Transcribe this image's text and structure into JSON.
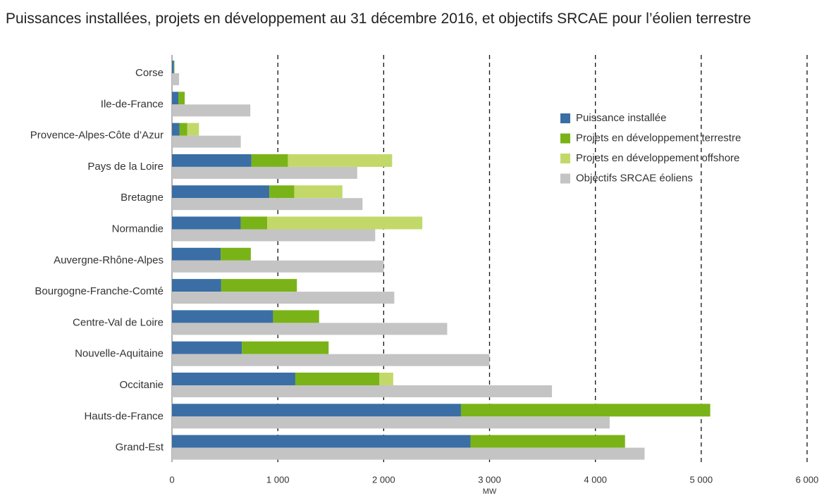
{
  "chart_data": {
    "type": "bar",
    "orientation": "horizontal",
    "title": "Puissances installées, projets en développement au 31 décembre 2016, et objectifs SRCAE pour l’éolien terrestre",
    "x_label": "MW",
    "categories": [
      "Corse",
      "Ile-de-France",
      "Provence-Alpes-Côte d’Azur",
      "Pays de la Loire",
      "Bretagne",
      "Normandie",
      "Auvergne-Rhône-Alpes",
      "Bourgogne-Franche-Comté",
      "Centre-Val de Loire",
      "Nouvelle-Aquitaine",
      "Occitanie",
      "Hauts-de-France",
      "Grand-Est"
    ],
    "series": [
      {
        "name": "Puissance installée",
        "color": "#3a6ea5",
        "values": [
          18,
          60,
          70,
          750,
          920,
          650,
          460,
          465,
          955,
          660,
          1165,
          2730,
          2820
        ]
      },
      {
        "name": "Projets en développement terrestre",
        "color": "#7ab317",
        "values": [
          5,
          60,
          75,
          345,
          235,
          250,
          285,
          715,
          435,
          820,
          795,
          2355,
          1460
        ]
      },
      {
        "name": "Projets en développement offshore",
        "color": "#c2d96a",
        "values": [
          0,
          0,
          110,
          985,
          455,
          1465,
          0,
          0,
          0,
          0,
          130,
          0,
          0
        ]
      },
      {
        "name": "Objectifs SRCAE éoliens",
        "color": "#c4c4c4",
        "values": [
          67,
          740,
          650,
          1750,
          1800,
          1920,
          2000,
          2100,
          2600,
          3000,
          3590,
          4135,
          4465
        ]
      }
    ],
    "xlim": [
      0,
      6000
    ],
    "xticks": [
      0,
      {
        "value": 1000,
        "label": "1 000"
      },
      {
        "value": 2000,
        "label": "2 000"
      },
      {
        "value": 3000,
        "label": "3 000"
      },
      {
        "value": 4000,
        "label": "4 000"
      },
      {
        "value": 5000,
        "label": "5 000"
      },
      {
        "value": 6000,
        "label": "6 000"
      }
    ],
    "grid": true,
    "legend": "upper right"
  }
}
